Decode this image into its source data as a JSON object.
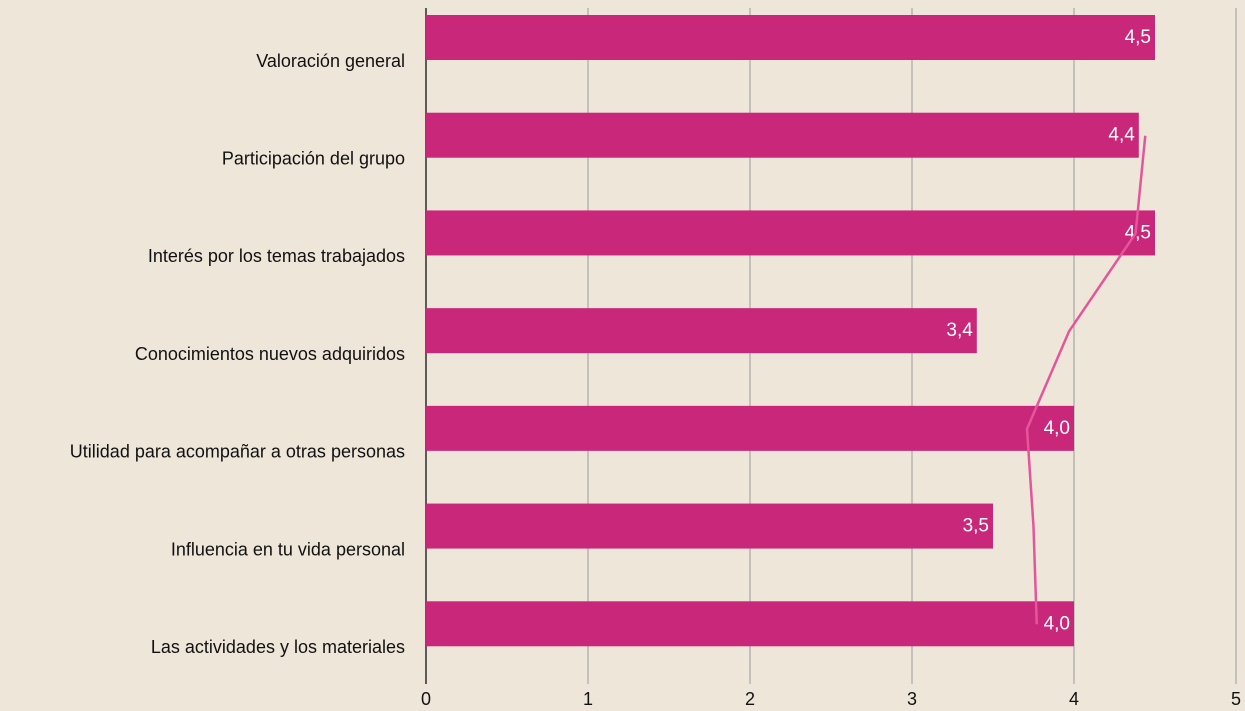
{
  "chart_data": {
    "type": "bar",
    "orientation": "horizontal",
    "categories": [
      "Valoración general",
      "Participación del grupo",
      "Interés por los temas trabajados",
      "Conocimientos nuevos adquiridos",
      "Utilidad para acompañar a otras personas",
      "Influencia en tu vida personal",
      "Las actividades y los materiales"
    ],
    "series": [
      {
        "type": "bar",
        "color": "#c8277a",
        "values": [
          4.5,
          4.4,
          4.5,
          3.4,
          4.0,
          3.5,
          4.0
        ],
        "value_labels": [
          "4,5",
          "4,4",
          "4,5",
          "3,4",
          "4,0",
          "3,5",
          "4,0"
        ]
      },
      {
        "type": "line",
        "color": "#e4569a",
        "values": [
          null,
          4.44,
          4.38,
          3.97,
          3.71,
          3.75,
          3.77
        ]
      }
    ],
    "xlim": [
      0,
      5
    ],
    "xticks": [
      0,
      1,
      2,
      3,
      4,
      5
    ],
    "grid": true
  }
}
